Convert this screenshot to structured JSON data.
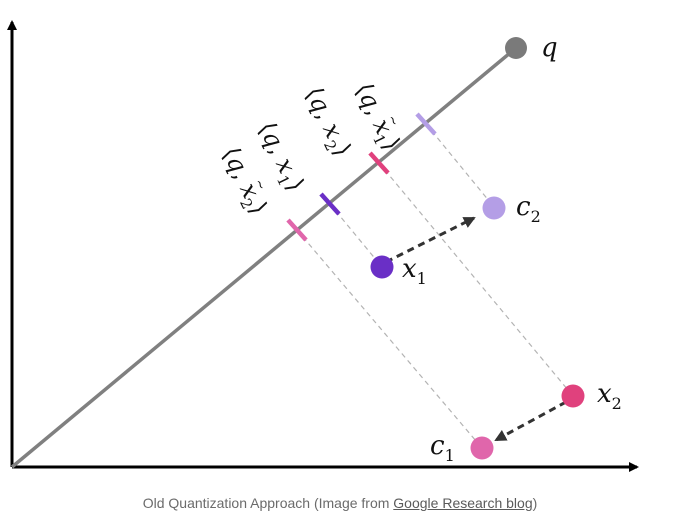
{
  "diagram": {
    "colors": {
      "axis": "#000000",
      "query_line": "#808080",
      "dashed": "#b3b3b3",
      "q": "#7a7a7a",
      "x1": "#6a2fc6",
      "c2": "#b49ee6",
      "x2": "#e0417d",
      "c1": "#e066ab",
      "tick_tilde_x1": "#b49ee6",
      "tick_x2": "#e0417d",
      "tick_x1": "#6a2fc6",
      "tick_tilde_x2": "#e066ab",
      "arrow": "#333333"
    },
    "points": {
      "q": {
        "letter": "q",
        "sub": ""
      },
      "x1": {
        "letter": "x",
        "sub": "1"
      },
      "x2": {
        "letter": "x",
        "sub": "2"
      },
      "c1": {
        "letter": "c",
        "sub": "1"
      },
      "c2": {
        "letter": "c",
        "sub": "2"
      }
    },
    "projections": [
      {
        "id": "q-tilde-x1",
        "open": "⟨",
        "q": "q",
        "comma": ", ",
        "var": "x",
        "tilde": "~",
        "sub": "1",
        "close": "⟩"
      },
      {
        "id": "q-x2",
        "open": "⟨",
        "q": "q",
        "comma": ", ",
        "var": "x",
        "tilde": "",
        "sub": "2",
        "close": "⟩"
      },
      {
        "id": "q-x1",
        "open": "⟨",
        "q": "q",
        "comma": ", ",
        "var": "x",
        "tilde": "",
        "sub": "1",
        "close": "⟩"
      },
      {
        "id": "q-tilde-x2",
        "open": "⟨",
        "q": "q",
        "comma": ", ",
        "var": "x",
        "tilde": "~",
        "sub": "2",
        "close": "⟩"
      }
    ]
  },
  "caption": {
    "prefix": "Old Quantization Approach (Image from ",
    "link": "Google Research blog",
    "suffix": ")"
  }
}
